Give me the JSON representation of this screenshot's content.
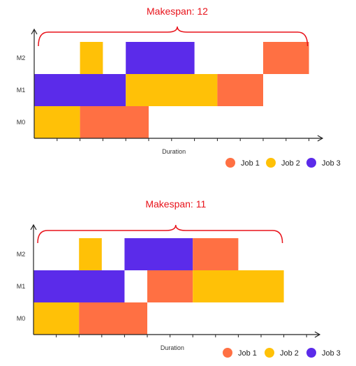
{
  "colors": {
    "Job 1": "#ff7043",
    "Job 2": "#ffc107",
    "Job 3": "#5b2bea",
    "annotation": "#e8121a",
    "axis": "#222222"
  },
  "chart_data": [
    {
      "type": "gantt",
      "annotation": "Makespan: 12",
      "makespan": 12,
      "xlabel": "Duration",
      "machines": [
        "M0",
        "M1",
        "M2"
      ],
      "legend": [
        "Job 1",
        "Job 2",
        "Job 3"
      ],
      "legend_position": "bottom-right",
      "tasks": [
        {
          "machine": "M0",
          "job": "Job 2",
          "start": 0,
          "end": 2
        },
        {
          "machine": "M0",
          "job": "Job 1",
          "start": 2,
          "end": 5
        },
        {
          "machine": "M1",
          "job": "Job 3",
          "start": 0,
          "end": 4
        },
        {
          "machine": "M1",
          "job": "Job 2",
          "start": 4,
          "end": 8
        },
        {
          "machine": "M1",
          "job": "Job 1",
          "start": 8,
          "end": 10
        },
        {
          "machine": "M2",
          "job": "Job 2",
          "start": 2,
          "end": 3
        },
        {
          "machine": "M2",
          "job": "Job 3",
          "start": 4,
          "end": 7
        },
        {
          "machine": "M2",
          "job": "Job 1",
          "start": 10,
          "end": 12
        }
      ]
    },
    {
      "type": "gantt",
      "annotation": "Makespan: 11",
      "makespan": 11,
      "xlabel": "Duration",
      "machines": [
        "M0",
        "M1",
        "M2"
      ],
      "legend": [
        "Job 1",
        "Job 2",
        "Job 3"
      ],
      "legend_position": "bottom-right",
      "tasks": [
        {
          "machine": "M0",
          "job": "Job 2",
          "start": 0,
          "end": 2
        },
        {
          "machine": "M0",
          "job": "Job 1",
          "start": 2,
          "end": 5
        },
        {
          "machine": "M1",
          "job": "Job 3",
          "start": 0,
          "end": 4
        },
        {
          "machine": "M1",
          "job": "Job 1",
          "start": 5,
          "end": 7
        },
        {
          "machine": "M1",
          "job": "Job 2",
          "start": 7,
          "end": 11
        },
        {
          "machine": "M2",
          "job": "Job 2",
          "start": 2,
          "end": 3
        },
        {
          "machine": "M2",
          "job": "Job 3",
          "start": 4,
          "end": 7
        },
        {
          "machine": "M2",
          "job": "Job 1",
          "start": 7,
          "end": 9
        }
      ]
    }
  ]
}
